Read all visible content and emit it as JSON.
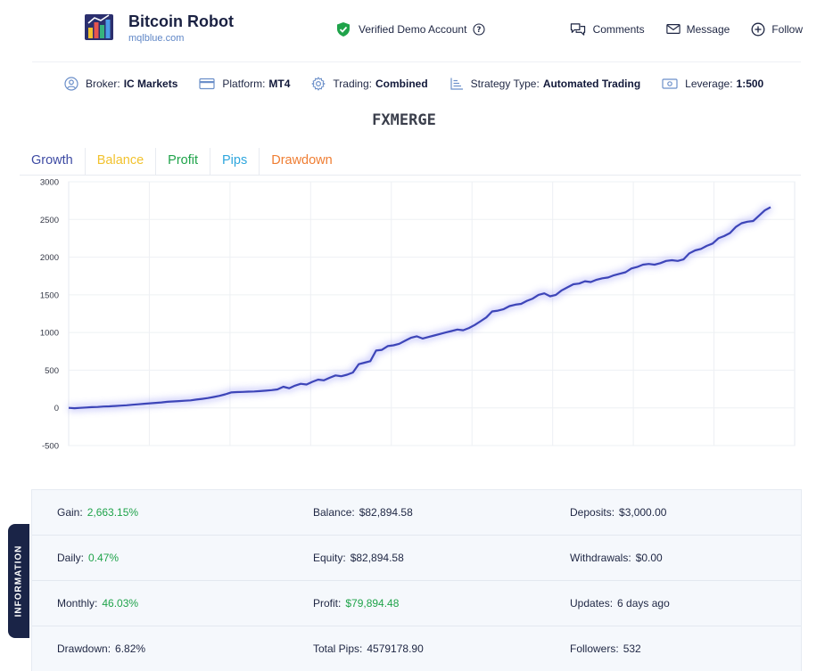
{
  "header": {
    "title": "Bitcoin Robot",
    "url": "mqlblue.com",
    "verified_label": "Verified Demo Account",
    "actions": {
      "comments": "Comments",
      "message": "Message",
      "follow": "Follow"
    }
  },
  "meta": {
    "broker_label": "Broker:",
    "broker_value": "IC Markets",
    "platform_label": "Platform:",
    "platform_value": "MT4",
    "trading_label": "Trading:",
    "trading_value": "Combined",
    "strategy_label": "Strategy Type:",
    "strategy_value": "Automated Trading",
    "leverage_label": "Leverage:",
    "leverage_value": "1:500"
  },
  "strategy_name": "FXMERGE",
  "tabs": [
    {
      "label": "Growth",
      "color": "#3d4aa3"
    },
    {
      "label": "Balance",
      "color": "#f2c22e"
    },
    {
      "label": "Profit",
      "color": "#1fa34a"
    },
    {
      "label": "Pips",
      "color": "#2ea6dd"
    },
    {
      "label": "Drawdown",
      "color": "#ef7d32"
    }
  ],
  "chart_data": {
    "type": "line",
    "title": "",
    "xlabel": "",
    "ylabel": "",
    "ylim": [
      -500,
      3000
    ],
    "yticks": [
      3000,
      2500,
      2000,
      1500,
      1000,
      500,
      0,
      -500
    ],
    "line_color": "#3d45b8",
    "series": [
      {
        "name": "Growth",
        "values": [
          0,
          -5,
          0,
          5,
          10,
          12,
          18,
          20,
          25,
          30,
          35,
          42,
          48,
          55,
          60,
          66,
          72,
          80,
          85,
          90,
          95,
          100,
          110,
          120,
          130,
          145,
          160,
          180,
          205,
          210,
          212,
          215,
          218,
          222,
          228,
          235,
          245,
          280,
          260,
          295,
          320,
          310,
          345,
          375,
          365,
          400,
          430,
          420,
          440,
          470,
          580,
          600,
          620,
          760,
          770,
          820,
          830,
          850,
          890,
          930,
          950,
          920,
          940,
          960,
          980,
          1000,
          1020,
          1040,
          1030,
          1060,
          1100,
          1150,
          1200,
          1280,
          1290,
          1310,
          1350,
          1370,
          1380,
          1420,
          1450,
          1500,
          1520,
          1480,
          1500,
          1560,
          1600,
          1640,
          1650,
          1680,
          1670,
          1700,
          1720,
          1730,
          1760,
          1780,
          1800,
          1850,
          1870,
          1900,
          1910,
          1900,
          1920,
          1950,
          1960,
          1950,
          1970,
          2050,
          2090,
          2110,
          2150,
          2180,
          2250,
          2280,
          2320,
          2400,
          2450,
          2470,
          2480,
          2550,
          2620,
          2663
        ]
      }
    ]
  },
  "info": {
    "rows": [
      [
        {
          "label": "Gain:",
          "value": "2,663.15%",
          "green": true
        },
        {
          "label": "Balance:",
          "value": "$82,894.58",
          "green": false
        },
        {
          "label": "Deposits:",
          "value": "$3,000.00",
          "green": false
        }
      ],
      [
        {
          "label": "Daily:",
          "value": "0.47%",
          "green": true
        },
        {
          "label": "Equity:",
          "value": "$82,894.58",
          "green": false
        },
        {
          "label": "Withdrawals:",
          "value": "$0.00",
          "green": false
        }
      ],
      [
        {
          "label": "Monthly:",
          "value": "46.03%",
          "green": true
        },
        {
          "label": "Profit:",
          "value": "$79,894.48",
          "green": true
        },
        {
          "label": "Updates:",
          "value": "6 days ago",
          "green": false
        }
      ],
      [
        {
          "label": "Drawdown:",
          "value": "6.82%",
          "green": false
        },
        {
          "label": "Total Pips:",
          "value": "4579178.90",
          "green": false
        },
        {
          "label": "Followers:",
          "value": "532",
          "green": false
        }
      ]
    ],
    "side_label": "INFORMATION"
  }
}
